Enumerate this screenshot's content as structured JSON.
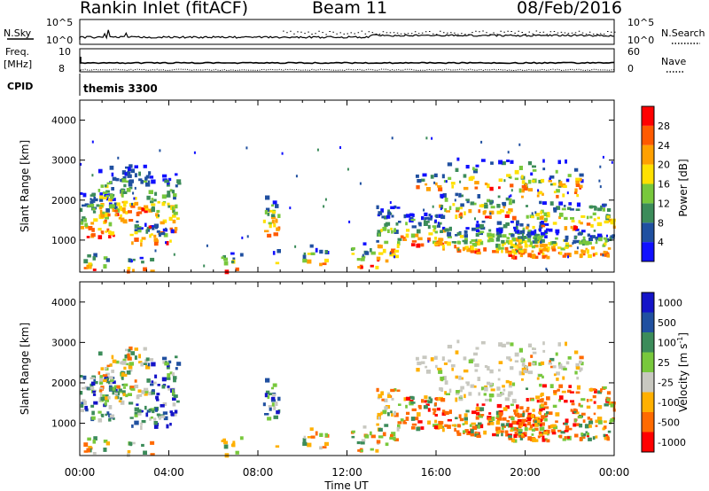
{
  "header": {
    "station": "Rankin Inlet (fitACF)",
    "beam": "Beam 11",
    "date": "08/Feb/2016"
  },
  "top_strip": {
    "left_label": "N.Sky",
    "left_ticks": [
      "10^5",
      "10^0"
    ],
    "right_label": "N.Search",
    "right_ticks": [
      "10^5",
      "10^0"
    ]
  },
  "freq_strip": {
    "left_label_1": "Freq.",
    "left_label_2": "[MHz]",
    "left_ticks": [
      "10",
      "8"
    ],
    "right_label": "Nave",
    "right_ticks": [
      "60",
      "0"
    ]
  },
  "cpid": {
    "label": "CPID",
    "value": "themis 3300"
  },
  "colors": {
    "power": [
      "#1010ff",
      "#2050a0",
      "#3c8c5a",
      "#78c83c",
      "#ffe000",
      "#ffa000",
      "#ff5a00",
      "#ff0000"
    ],
    "velocity": [
      "#ff0000",
      "#ff6a00",
      "#ffb000",
      "#c8c8c0",
      "#78c83c",
      "#3c8c5a",
      "#2050a0",
      "#1414c8"
    ]
  },
  "chart_data": [
    {
      "type": "heatmap",
      "title": "",
      "xlabel": "",
      "ylabel": "Slant Range [km]",
      "xlim": [
        "00:00",
        "24:00"
      ],
      "ylim": [
        200,
        4500
      ],
      "yticks": [
        "1000",
        "2000",
        "3000",
        "4000"
      ],
      "colorbar_label": "Power [dB]",
      "colorbar_ticks": [
        "4",
        "8",
        "12",
        "16",
        "20",
        "24",
        "28"
      ],
      "regions": [
        {
          "x_start": "00:00",
          "x_end": "04:30",
          "range_min": 900,
          "range_max": 3000,
          "level": "mixed"
        },
        {
          "x_start": "08:20",
          "x_end": "09:00",
          "range_min": 1200,
          "range_max": 2300,
          "level": "mixed"
        },
        {
          "x_start": "13:30",
          "x_end": "14:30",
          "range_min": 800,
          "range_max": 2100,
          "level": "mixed"
        },
        {
          "x_start": "14:30",
          "x_end": "24:00",
          "range_min": 600,
          "range_max": 2700,
          "level": "high near 1000 km"
        }
      ]
    },
    {
      "type": "heatmap",
      "title": "",
      "xlabel": "Time UT",
      "ylabel": "Slant Range [km]",
      "xlim": [
        "00:00",
        "24:00"
      ],
      "ylim": [
        200,
        4500
      ],
      "xticks": [
        "00:00",
        "04:00",
        "08:00",
        "12:00",
        "16:00",
        "20:00",
        "00:00"
      ],
      "yticks": [
        "1000",
        "2000",
        "3000",
        "4000"
      ],
      "colorbar_label": "Velocity [m s^-1]",
      "colorbar_label_main": "Velocity [m s",
      "colorbar_label_exp": "-1",
      "colorbar_label_end": "]",
      "colorbar_ticks": [
        "1000",
        "500",
        "100",
        "25",
        "-25",
        "-100",
        "-500",
        "-1000"
      ],
      "regions": [
        {
          "x_start": "00:00",
          "x_end": "04:30",
          "range_min": 900,
          "range_max": 2900,
          "level": "positive"
        },
        {
          "x_start": "08:20",
          "x_end": "09:00",
          "range_min": 1200,
          "range_max": 2300,
          "level": "positive"
        },
        {
          "x_start": "14:30",
          "x_end": "24:00",
          "range_min": 600,
          "range_max": 2700,
          "level": "negative"
        }
      ]
    }
  ]
}
